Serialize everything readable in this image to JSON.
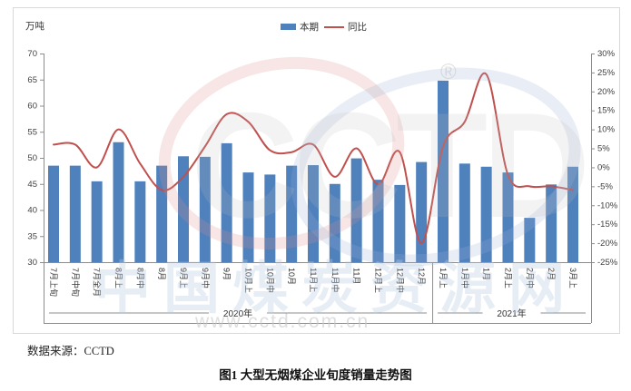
{
  "chart_data": {
    "type": "bar+line",
    "title": "",
    "grid": false,
    "legend_position": "top-center",
    "categories": [
      "7月上旬",
      "7月中旬",
      "7月全月",
      "8月上",
      "8月中",
      "8月",
      "9月上",
      "9月中",
      "9月",
      "10月上",
      "10月中",
      "10月",
      "11月上",
      "11月中",
      "11月",
      "12月上",
      "12月中",
      "12月",
      "1月上",
      "1月中",
      "1月",
      "2月上",
      "2月中",
      "2月",
      "3月上"
    ],
    "series": [
      {
        "name": "本期",
        "type": "bar",
        "axis": "left",
        "color": "#4F81BD",
        "values": [
          48.5,
          48.5,
          45.5,
          53,
          45.5,
          48.5,
          50.3,
          50.2,
          52.8,
          47.2,
          46.8,
          48.5,
          48.6,
          45,
          49.9,
          45.8,
          44.8,
          49.2,
          64.8,
          48.9,
          48.3,
          47.2,
          38.5,
          44.9,
          48.3
        ]
      },
      {
        "name": "同比",
        "type": "line",
        "axis": "right",
        "color": "#C0504D",
        "values": [
          6,
          6,
          0,
          10,
          1,
          -6,
          -2.5,
          5.5,
          14,
          12,
          4.5,
          4,
          6,
          -2.5,
          5,
          -4.5,
          4,
          -20,
          5.5,
          12,
          24.5,
          -2,
          -5,
          -5,
          -6
        ]
      }
    ],
    "left_axis": {
      "title": "万吨",
      "min": 30,
      "max": 70,
      "step": 5
    },
    "right_axis": {
      "min": -25,
      "max": 30,
      "step": 5,
      "suffix": "%"
    },
    "year_groups": [
      {
        "label": "2020年",
        "start": 0,
        "end": 17
      },
      {
        "label": "2021年",
        "start": 18,
        "end": 24
      }
    ]
  },
  "watermark": {
    "logo_text": "CCTD",
    "registered_mark": "®",
    "url": "www.cctd.com.cn",
    "site_name": "中国煤炭资源网"
  },
  "footer": {
    "source": "数据来源：CCTD",
    "caption": "图1 大型无烟煤企业旬度销量走势图"
  }
}
